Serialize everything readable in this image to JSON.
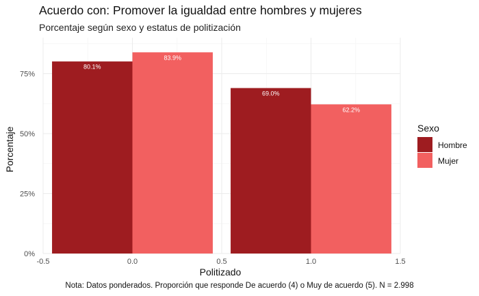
{
  "chart_data": {
    "type": "bar",
    "title": "Acuerdo con: Promover la igualdad entre hombres y mujeres",
    "subtitle": "Porcentaje según sexo y estatus de politización",
    "caption": "Nota: Datos ponderados. Proporción que responde De acuerdo (4) o Muy de acuerdo (5). N = 2.998",
    "xlabel": "Politizado",
    "ylabel": "Porcentaje",
    "x": [
      0,
      1
    ],
    "xlim": [
      -0.5,
      1.5
    ],
    "x_ticks": [
      "-0.5",
      "0.0",
      "0.5",
      "1.0",
      "1.5"
    ],
    "ylim": [
      0,
      90
    ],
    "y_ticks": [
      "0%",
      "25%",
      "50%",
      "75%"
    ],
    "grid": true,
    "legend_title": "Sexo",
    "legend_position": "right",
    "series": [
      {
        "name": "Hombre",
        "color": "#9E1C20",
        "values": [
          80.1,
          69.0
        ],
        "labels": [
          "80.1%",
          "69.0%"
        ]
      },
      {
        "name": "Mujer",
        "color": "#F26060",
        "values": [
          83.9,
          62.2
        ],
        "labels": [
          "83.9%",
          "62.2%"
        ]
      }
    ]
  }
}
